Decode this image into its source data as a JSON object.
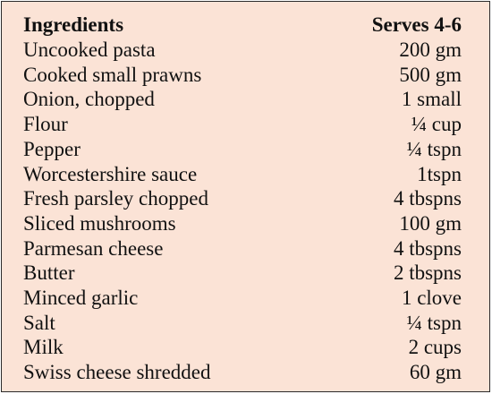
{
  "table": {
    "header": {
      "ingredient": "Ingredients",
      "quantity": "Serves 4-6"
    },
    "rows": [
      {
        "ingredient": "Uncooked pasta",
        "quantity": "200 gm"
      },
      {
        "ingredient": "Cooked small prawns",
        "quantity": "500 gm"
      },
      {
        "ingredient": "Onion, chopped",
        "quantity": "1 small"
      },
      {
        "ingredient": "Flour",
        "quantity": "¼ cup"
      },
      {
        "ingredient": "Pepper",
        "quantity": "¼ tspn"
      },
      {
        "ingredient": "Worcestershire sauce",
        "quantity": "1tspn"
      },
      {
        "ingredient": "Fresh parsley chopped",
        "quantity": "4 tbspns"
      },
      {
        "ingredient": "Sliced mushrooms",
        "quantity": "100 gm"
      },
      {
        "ingredient": "Parmesan cheese",
        "quantity": "4 tbspns"
      },
      {
        "ingredient": "Butter",
        "quantity": "2 tbspns"
      },
      {
        "ingredient": "Minced garlic",
        "quantity": "1 clove"
      },
      {
        "ingredient": "Salt",
        "quantity": "¼ tspn"
      },
      {
        "ingredient": "Milk",
        "quantity": "2 cups"
      },
      {
        "ingredient": "Swiss cheese shredded",
        "quantity": "60 gm"
      }
    ]
  },
  "colors": {
    "background": "#fbe3d6",
    "border": "#2b2b2b",
    "text": "#111111"
  }
}
